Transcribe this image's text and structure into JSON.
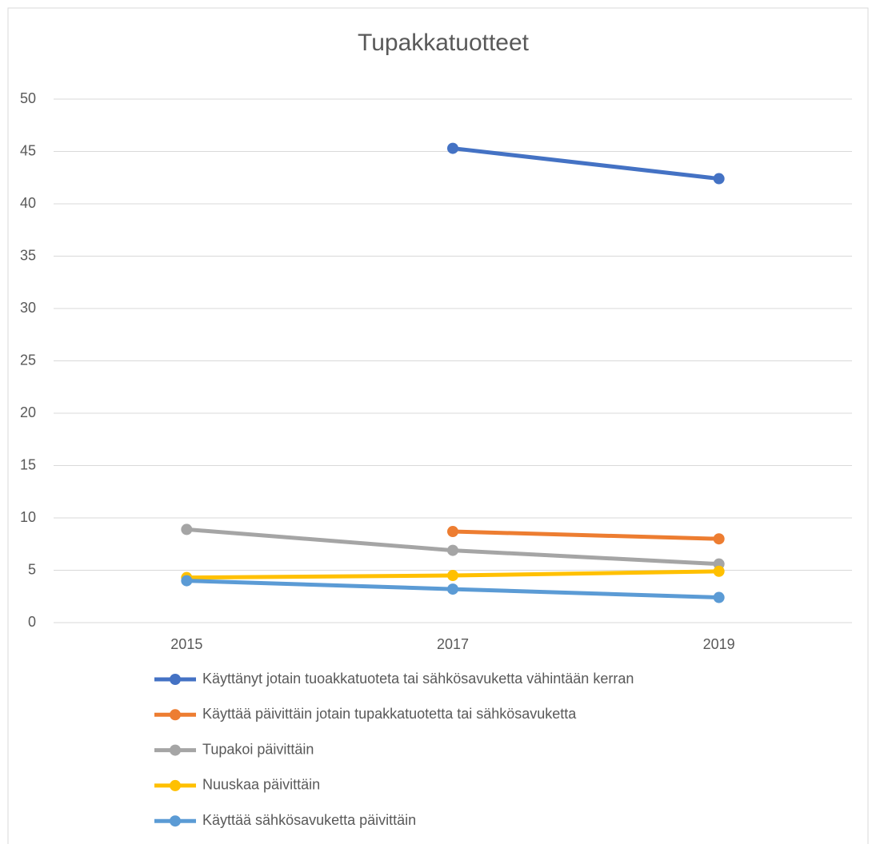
{
  "chart_data": {
    "type": "line",
    "title": "Tupakkatuotteet",
    "categories": [
      "2015",
      "2017",
      "2019"
    ],
    "series": [
      {
        "name": "Käyttänyt jotain tuoakkatuoteta tai sähkösavuketta vähintään kerran",
        "color": "#4472c4",
        "values": [
          null,
          45.3,
          42.4
        ]
      },
      {
        "name": "Käyttää päivittäin jotain tupakkatuotetta tai sähkösavuketta",
        "color": "#ed7d31",
        "values": [
          null,
          8.7,
          8.0
        ]
      },
      {
        "name": "Tupakoi päivittäin",
        "color": "#a5a5a5",
        "values": [
          8.9,
          6.9,
          5.6
        ]
      },
      {
        "name": "Nuuskaa päivittäin",
        "color": "#ffc000",
        "values": [
          4.3,
          4.5,
          4.9
        ]
      },
      {
        "name": "Käyttää sähkösavuketta päivittäin",
        "color": "#5b9bd5",
        "values": [
          4.0,
          3.2,
          2.4
        ]
      }
    ],
    "ylim": [
      0,
      50
    ],
    "yticks": [
      0,
      5,
      10,
      15,
      20,
      25,
      30,
      35,
      40,
      45,
      50
    ],
    "grid": true,
    "legend": "bottom"
  }
}
